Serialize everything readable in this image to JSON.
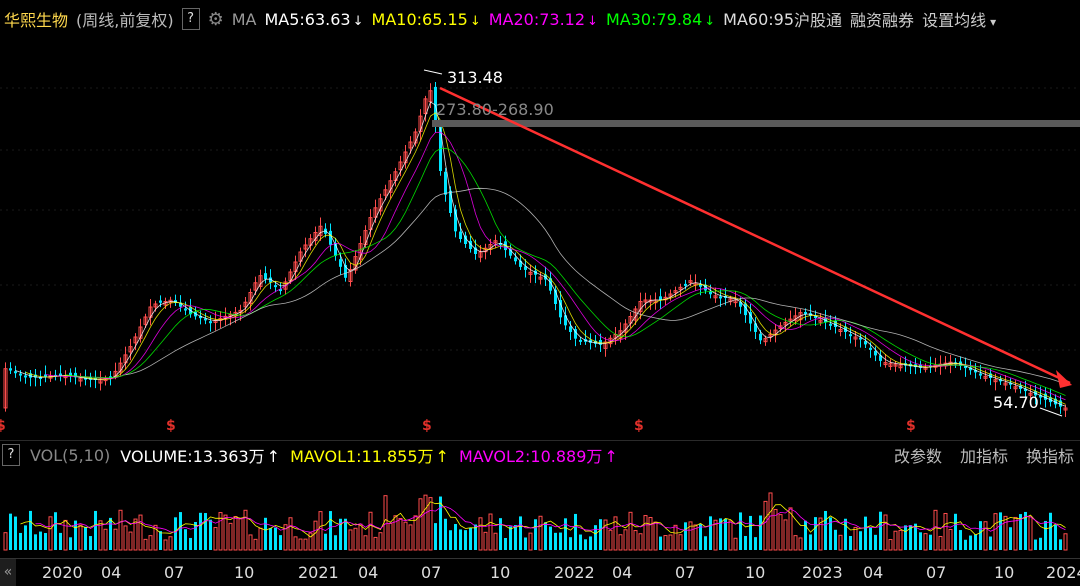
{
  "header": {
    "stock_name": "华熙生物",
    "period": "(周线,前复权)",
    "help": "?",
    "ma_label": "MA",
    "ma5": "MA5:63.63",
    "ma10": "MA10:65.15",
    "ma20": "MA20:73.12",
    "ma30": "MA30:79.84",
    "ma60": "MA60:95",
    "hk_connect": "沪股通",
    "margin": "融资融券",
    "ma_settings": "设置均线",
    "down_arrow": "↓",
    "caret": "▾"
  },
  "annotations": {
    "high": "313.48",
    "range": "273.80-268.90",
    "low": "54.70",
    "marker": "$"
  },
  "volume_bar": {
    "help": "?",
    "vol_label": "VOL(5,10)",
    "volume": "VOLUME:13.363万",
    "mavol1": "MAVOL1:11.855万",
    "mavol2": "MAVOL2:10.889万",
    "up_arrow": "↑",
    "btn_params": "改参数",
    "btn_add": "加指标",
    "btn_switch": "换指标"
  },
  "xaxis": {
    "ticks": [
      "2020",
      "04",
      "07",
      "10",
      "2021",
      "04",
      "07",
      "10",
      "2022",
      "04",
      "07",
      "10",
      "2023",
      "04",
      "07",
      "10",
      "2024"
    ],
    "scroll_btn": "«"
  },
  "colors": {
    "up": "#ff4d4d",
    "down": "#00e5ff",
    "ma5": "#ffffff",
    "ma10": "#ffff00",
    "ma20": "#ff00ff",
    "ma30": "#00ff00",
    "ma60": "#d0d0d0",
    "trend": "#ff3030"
  },
  "chart_data": {
    "type": "candlestick",
    "price_points": [
      {
        "date": "2021-06",
        "label": "313.48"
      },
      {
        "date": "2024-01",
        "label": "54.70"
      }
    ],
    "resistance_band": [
      268.9,
      273.8
    ],
    "ma_lines": [
      "MA5",
      "MA10",
      "MA20",
      "MA30",
      "MA60"
    ]
  }
}
